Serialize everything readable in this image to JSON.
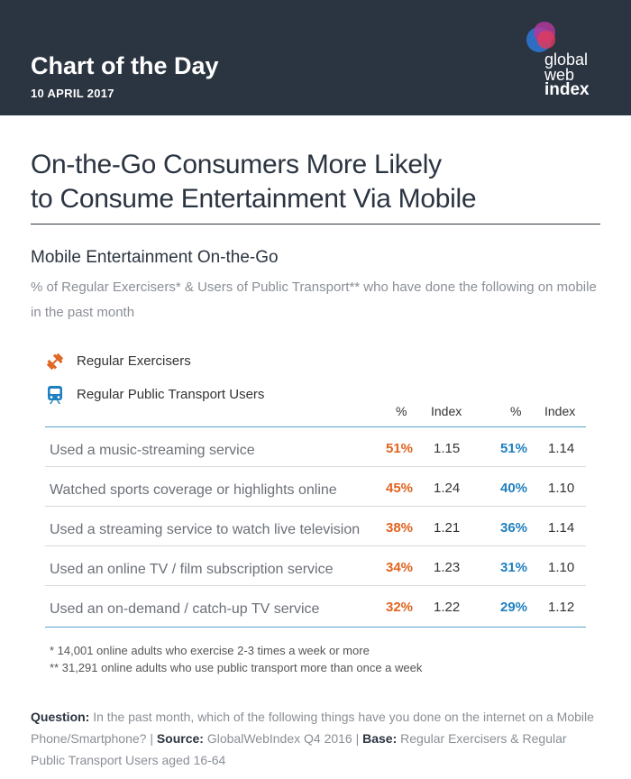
{
  "header": {
    "title": "Chart of the Day",
    "date": "10 APRIL 2017",
    "logo": [
      "global",
      "web",
      "index"
    ]
  },
  "main_title_line1": "On-the-Go Consumers More Likely",
  "main_title_line2": "to Consume Entertainment Via Mobile",
  "subtitle": "Mobile Entertainment On-the-Go",
  "description": "% of Regular Exercisers* & Users of Public Transport** who have done the following on mobile in the past month",
  "legend": [
    {
      "label": "Regular Exercisers",
      "icon": "dumbbell-icon",
      "color": "#e06420"
    },
    {
      "label": "Regular Public Transport Users",
      "icon": "train-icon",
      "color": "#1f7fbf"
    }
  ],
  "columns": [
    "%",
    "Index",
    "%",
    "Index"
  ],
  "chart_data": {
    "type": "table",
    "series": [
      {
        "name": "Regular Exercisers",
        "values": [
          51,
          45,
          38,
          34,
          32
        ],
        "index": [
          1.15,
          1.24,
          1.21,
          1.23,
          1.22
        ]
      },
      {
        "name": "Regular Public Transport Users",
        "values": [
          51,
          40,
          36,
          31,
          29
        ],
        "index": [
          1.14,
          1.1,
          1.14,
          1.1,
          1.12
        ]
      }
    ],
    "categories": [
      "Used a music-streaming service",
      "Watched sports coverage or highlights online",
      "Used a streaming service to watch live television",
      "Used an online TV / film subscription service",
      "Used an on-demand / catch-up TV service"
    ]
  },
  "rows": [
    {
      "label": "Used a music-streaming service",
      "v1": "51%",
      "i1": "1.15",
      "v2": "51%",
      "i2": "1.14"
    },
    {
      "label": "Watched sports coverage or highlights online",
      "v1": "45%",
      "i1": "1.24",
      "v2": "40%",
      "i2": "1.10"
    },
    {
      "label": "Used a streaming service to watch live television",
      "v1": "38%",
      "i1": "1.21",
      "v2": "36%",
      "i2": "1.14"
    },
    {
      "label": "Used an online TV / film subscription service",
      "v1": "34%",
      "i1": "1.23",
      "v2": "31%",
      "i2": "1.10"
    },
    {
      "label": "Used an on-demand / catch-up TV service",
      "v1": "32%",
      "i1": "1.22",
      "v2": "29%",
      "i2": "1.12"
    }
  ],
  "notes": [
    "* 14,001 online adults who exercise 2-3 times a week or more",
    "** 31,291 online adults who use public transport more than once a week"
  ],
  "footer": {
    "question_label": "Question:",
    "question_text": " In the past month, which of the following things have you done on the internet on a Mobile Phone/Smartphone? | ",
    "source_label": "Source:",
    "source_text": " GlobalWebIndex Q4 2016 | ",
    "base_label": "Base:",
    "base_text": " Regular Exercisers & Regular Public Transport Users aged 16-64"
  },
  "colors": {
    "header_bg": "#2b3441",
    "orange": "#e06420",
    "blue": "#1f7fbf",
    "table_line": "#5aa0c8"
  }
}
